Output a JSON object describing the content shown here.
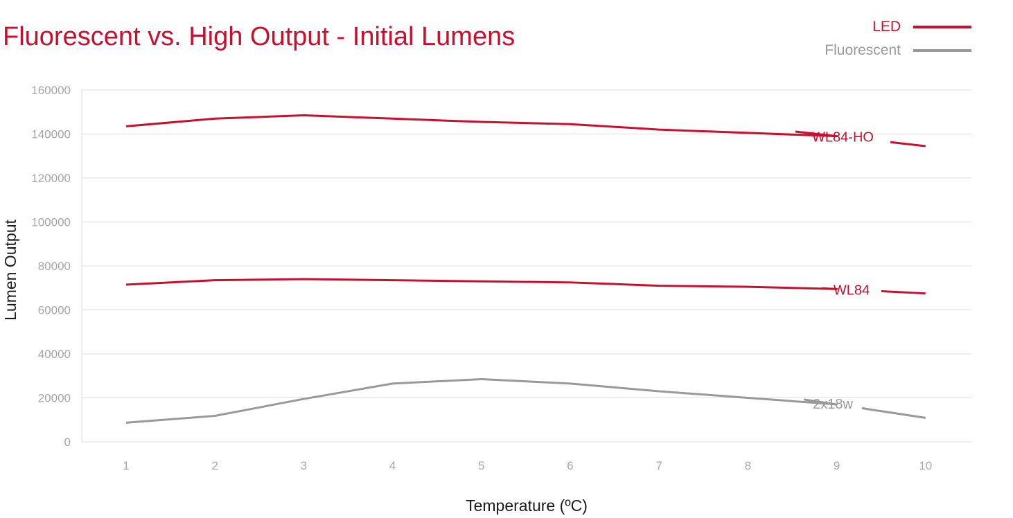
{
  "title": "Fluorescent vs. High Output - Initial Lumens",
  "legend": [
    {
      "label": "LED",
      "color": "#c8102e"
    },
    {
      "label": "Fluorescent",
      "color": "#999999"
    }
  ],
  "colors": {
    "led": "#c8102e",
    "fluorescent": "#999999",
    "grid": "#dddddd",
    "ticks": "#a6a6a6"
  },
  "chart_data": {
    "type": "line",
    "title": "Fluorescent vs. High Output - Initial Lumens",
    "xlabel": "Temperature (ºC)",
    "ylabel": "Lumen Output",
    "x": [
      1,
      2,
      3,
      4,
      5,
      6,
      7,
      8,
      9,
      10
    ],
    "ylim": [
      0,
      160000
    ],
    "yticks": [
      0,
      20000,
      40000,
      60000,
      80000,
      100000,
      120000,
      140000,
      160000
    ],
    "grid": true,
    "legend_position": "top-right",
    "series": [
      {
        "name": "WL84-HO",
        "group": "LED",
        "color": "#c8102e",
        "values": [
          143500,
          147000,
          148500,
          147000,
          145500,
          144500,
          142000,
          140500,
          139000,
          134500
        ]
      },
      {
        "name": "WL84",
        "group": "LED",
        "color": "#c8102e",
        "values": [
          71500,
          73500,
          74000,
          73500,
          73000,
          72500,
          71000,
          70500,
          69500,
          67500
        ]
      },
      {
        "name": "2x18w",
        "group": "Fluorescent",
        "color": "#999999",
        "values": [
          8700,
          11800,
          19500,
          26500,
          28500,
          26500,
          23000,
          20000,
          17000,
          10900
        ]
      }
    ]
  }
}
